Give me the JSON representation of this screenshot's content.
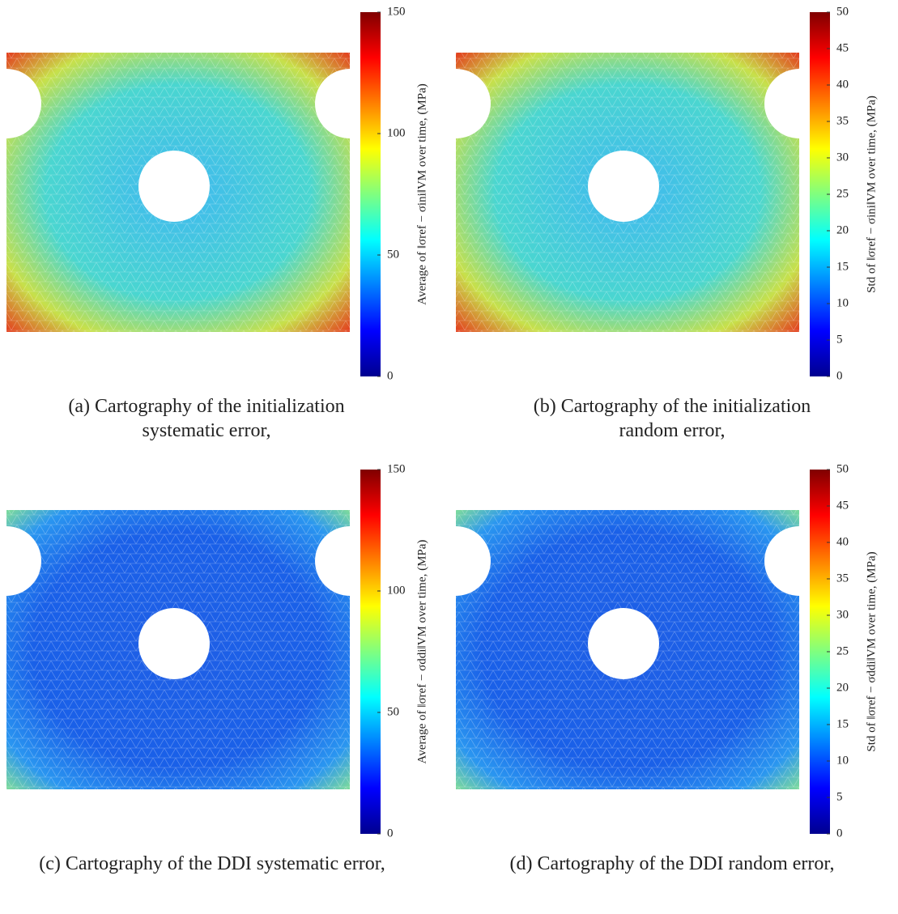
{
  "chart_data": [
    {
      "type": "colormap",
      "caption": "(a) Cartography of the initialization systematic error,",
      "colorbar_label": "Average of ‖σref − σini‖VM over time, (MPa)",
      "clim": [
        0,
        150
      ],
      "cticks": [
        0,
        50,
        100,
        150
      ],
      "colormap": "jet"
    },
    {
      "type": "colormap",
      "caption": "(b) Cartography of the initialization random error,",
      "colorbar_label": "Std of ‖σref − σini‖VM over time, (MPa)",
      "clim": [
        0,
        50
      ],
      "cticks": [
        0,
        5,
        10,
        15,
        20,
        25,
        30,
        35,
        40,
        45,
        50
      ],
      "colormap": "jet"
    },
    {
      "type": "colormap",
      "caption": "(c) Cartography of the DDI systematic error,",
      "colorbar_label": "Average of ‖σref − σddi‖VM over time, (MPa)",
      "clim": [
        0,
        150
      ],
      "cticks": [
        0,
        50,
        100,
        150
      ],
      "colormap": "jet"
    },
    {
      "type": "colormap",
      "caption": "(d) Cartography of the DDI random error,",
      "colorbar_label": "Std of ‖σref − σddi‖VM over time, (MPa)",
      "clim": [
        0,
        50
      ],
      "cticks": [
        0,
        5,
        10,
        15,
        20,
        25,
        30,
        35,
        40,
        45,
        50
      ],
      "colormap": "jet"
    }
  ]
}
